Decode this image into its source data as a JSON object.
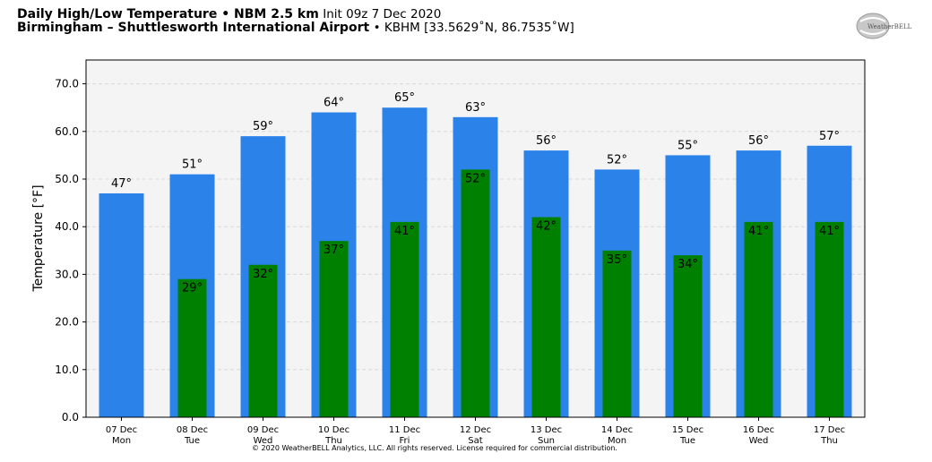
{
  "header": {
    "title_bold": "Daily High/Low Temperature • NBM 2.5 km",
    "title_init": "Init 09z 7 Dec 2020",
    "location_bold": "Birmingham – Shuttlesworth International Airport",
    "location_detail": "• KBHM [33.5629˚N, 86.7535˚W]"
  },
  "logo": {
    "text": "WeatherBELL"
  },
  "footer": {
    "copyright": "© 2020 WeatherBELL Analytics, LLC. All rights reserved. License required for commercial distribution."
  },
  "colors": {
    "high": "#2b83ea",
    "low": "#008000",
    "plot_bg": "#f4f4f4",
    "grid": "#d8d8d8"
  },
  "chart_data": {
    "type": "bar",
    "ylabel": "Temperature [°F]",
    "ylim": [
      0,
      75
    ],
    "yticks": [
      "0.0",
      "10.0",
      "20.0",
      "30.0",
      "40.0",
      "50.0",
      "60.0",
      "70.0"
    ],
    "grid": true,
    "categories": [
      [
        "07 Dec",
        "Mon"
      ],
      [
        "08 Dec",
        "Tue"
      ],
      [
        "09 Dec",
        "Wed"
      ],
      [
        "10 Dec",
        "Thu"
      ],
      [
        "11 Dec",
        "Fri"
      ],
      [
        "12 Dec",
        "Sat"
      ],
      [
        "13 Dec",
        "Sun"
      ],
      [
        "14 Dec",
        "Mon"
      ],
      [
        "15 Dec",
        "Tue"
      ],
      [
        "16 Dec",
        "Wed"
      ],
      [
        "17 Dec",
        "Thu"
      ]
    ],
    "series": [
      {
        "values": [
          47,
          51,
          59,
          64,
          65,
          63,
          56,
          52,
          55,
          56,
          57
        ],
        "labels": [
          "47°",
          "51°",
          "59°",
          "64°",
          "65°",
          "63°",
          "56°",
          "52°",
          "55°",
          "56°",
          "57°"
        ]
      },
      {
        "values": [
          null,
          29,
          32,
          37,
          41,
          52,
          42,
          35,
          34,
          41,
          41
        ],
        "labels": [
          "",
          "29°",
          "32°",
          "37°",
          "41°",
          "52°",
          "42°",
          "35°",
          "34°",
          "41°",
          "41°"
        ]
      }
    ]
  }
}
